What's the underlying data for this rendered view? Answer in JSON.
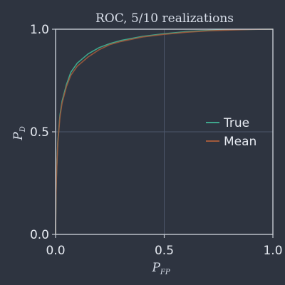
{
  "colors": {
    "background": "#2e3440",
    "frame": "#c5cad3",
    "grid": "#4c566a",
    "true_series": "#3fa68c",
    "mean_series": "#a05a3c"
  },
  "chart_data": {
    "type": "line",
    "title": "ROC, 5/10 realizations",
    "xlabel": {
      "main": "P",
      "sub": "FP"
    },
    "ylabel": {
      "main": "P",
      "sub": "D"
    },
    "xlim": [
      0,
      1
    ],
    "ylim": [
      0,
      1
    ],
    "xticks": [
      0.0,
      0.5,
      1.0
    ],
    "yticks": [
      0.0,
      0.5,
      1.0
    ],
    "xtick_labels": [
      "0.0",
      "0.5",
      "1.0"
    ],
    "ytick_labels": [
      "0.0",
      "0.5",
      "1.0"
    ],
    "grid": true,
    "legend_position": "right-middle",
    "series": [
      {
        "name": "True",
        "color": "#3fa68c",
        "x": [
          0,
          0.002,
          0.005,
          0.01,
          0.02,
          0.03,
          0.05,
          0.07,
          0.1,
          0.15,
          0.2,
          0.25,
          0.3,
          0.4,
          0.5,
          0.6,
          0.7,
          0.8,
          0.9,
          1.0
        ],
        "y": [
          0,
          0.2,
          0.32,
          0.45,
          0.58,
          0.65,
          0.73,
          0.79,
          0.835,
          0.88,
          0.91,
          0.93,
          0.945,
          0.965,
          0.978,
          0.988,
          0.994,
          0.997,
          0.999,
          1.0
        ]
      },
      {
        "name": "Mean",
        "color": "#a05a3c",
        "x": [
          0,
          0.002,
          0.005,
          0.01,
          0.02,
          0.03,
          0.05,
          0.07,
          0.1,
          0.15,
          0.2,
          0.25,
          0.3,
          0.4,
          0.5,
          0.6,
          0.7,
          0.8,
          0.9,
          1.0
        ],
        "y": [
          0,
          0.19,
          0.31,
          0.44,
          0.57,
          0.64,
          0.72,
          0.775,
          0.82,
          0.865,
          0.9,
          0.925,
          0.94,
          0.962,
          0.975,
          0.985,
          0.992,
          0.996,
          0.999,
          1.0
        ]
      }
    ]
  }
}
